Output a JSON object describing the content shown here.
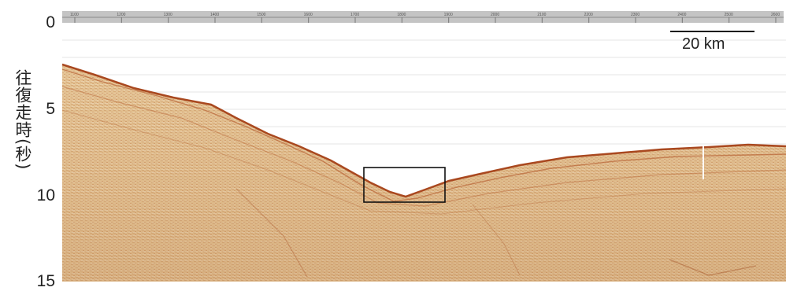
{
  "figure": {
    "y_axis": {
      "label": "往復走時(秒)",
      "ticks": [
        "0",
        "5",
        "10",
        "15"
      ]
    },
    "scale_bar": {
      "label": "20 km"
    },
    "ruler_labels": [
      "1100",
      "1200",
      "1300",
      "1400",
      "1500",
      "1600",
      "1700",
      "1800",
      "1900",
      "2000",
      "2100",
      "2200",
      "2300",
      "2400",
      "2500",
      "2600"
    ],
    "colors": {
      "section_base": "#e6c79a",
      "reflector": "#b0562a",
      "ruler": "#bdbdbd",
      "box": "#111111"
    }
  }
}
